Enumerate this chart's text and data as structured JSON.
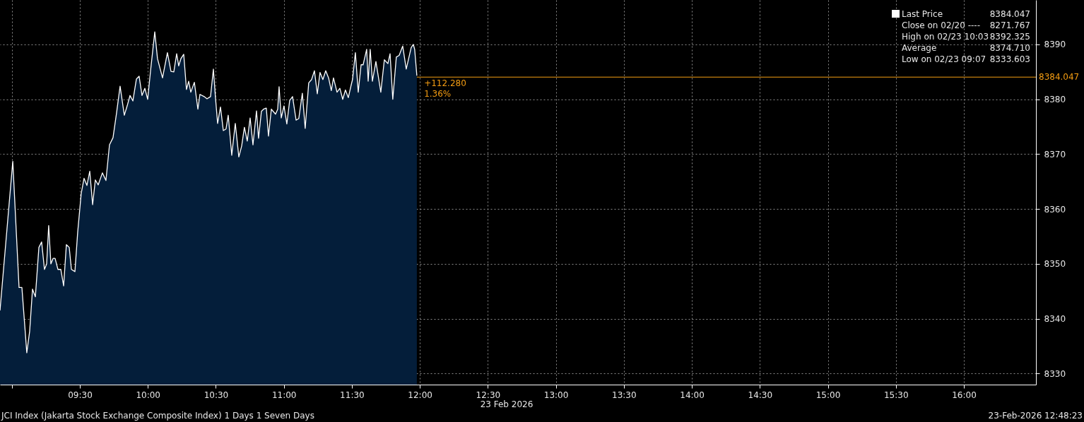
{
  "chart_data": {
    "type": "area",
    "x": [
      8.913,
      9.007,
      9.053,
      9.074,
      9.11,
      9.131,
      9.152,
      9.173,
      9.199,
      9.219,
      9.24,
      9.256,
      9.271,
      9.287,
      9.303,
      9.318,
      9.339,
      9.36,
      9.381,
      9.401,
      9.422,
      9.438,
      9.464,
      9.484,
      9.51,
      9.531,
      9.552,
      9.573,
      9.594,
      9.614,
      9.635,
      9.666,
      9.692,
      9.718,
      9.744,
      9.77,
      9.796,
      9.827,
      9.848,
      9.869,
      9.89,
      9.916,
      9.936,
      9.957,
      9.978,
      9.999,
      10.02,
      10.051,
      10.071,
      10.108,
      10.144,
      10.17,
      10.191,
      10.212,
      10.227,
      10.243,
      10.264,
      10.284,
      10.3,
      10.316,
      10.342,
      10.368,
      10.383,
      10.414,
      10.435,
      10.461,
      10.482,
      10.497,
      10.513,
      10.534,
      10.555,
      10.575,
      10.591,
      10.617,
      10.643,
      10.669,
      10.69,
      10.71,
      10.731,
      10.752,
      10.773,
      10.799,
      10.814,
      10.835,
      10.851,
      10.871,
      10.887,
      10.908,
      10.939,
      10.955,
      10.965,
      10.981,
      11.001,
      11.022,
      11.043,
      11.064,
      11.09,
      11.11,
      11.136,
      11.157,
      11.183,
      11.204,
      11.225,
      11.246,
      11.266,
      11.287,
      11.308,
      11.329,
      11.349,
      11.365,
      11.391,
      11.412,
      11.433,
      11.453,
      11.474,
      11.495,
      11.505,
      11.526,
      11.547,
      11.568,
      11.583,
      11.609,
      11.62,
      11.635,
      11.651,
      11.677,
      11.713,
      11.739,
      11.765,
      11.781,
      11.801,
      11.827,
      11.848,
      11.874,
      11.9,
      11.936,
      11.952,
      11.962,
      11.978
    ],
    "series": [
      {
        "name": "Last Price",
        "color": "#ffffff",
        "values": [
          8341.5,
          8368.7,
          8345.7,
          8345.7,
          8333.8,
          8337.7,
          8345.4,
          8344.0,
          8353.0,
          8354.0,
          8349.0,
          8350.0,
          8357.0,
          8350.0,
          8351.0,
          8351.0,
          8349.0,
          8349.0,
          8346.0,
          8353.5,
          8353.0,
          8349.0,
          8348.6,
          8355.7,
          8362.8,
          8365.6,
          8364.3,
          8366.9,
          8360.8,
          8365.3,
          8364.4,
          8366.6,
          8365.2,
          8371.7,
          8373.0,
          8377.5,
          8382.4,
          8377.1,
          8378.8,
          8380.7,
          8379.7,
          8383.7,
          8384.2,
          8380.7,
          8382.0,
          8380.0,
          8385.2,
          8392.3,
          8387.4,
          8383.9,
          8388.5,
          8385.1,
          8385.0,
          8388.3,
          8386.1,
          8387.4,
          8388.2,
          8381.8,
          8383.3,
          8381.3,
          8383.1,
          8378.2,
          8380.9,
          8380.5,
          8380.1,
          8380.5,
          8385.5,
          8380.4,
          8375.6,
          8378.6,
          8374.3,
          8374.6,
          8377.1,
          8369.8,
          8375.6,
          8369.5,
          8371.5,
          8374.9,
          8372.4,
          8376.6,
          8371.7,
          8377.9,
          8372.9,
          8377.8,
          8378.2,
          8378.4,
          8373.3,
          8378.2,
          8377.3,
          8378.2,
          8382.3,
          8376.6,
          8378.8,
          8375.5,
          8379.8,
          8380.5,
          8376.2,
          8376.5,
          8381.1,
          8374.7,
          8383.0,
          8383.6,
          8385.2,
          8381.0,
          8384.9,
          8383.6,
          8385.2,
          8383.9,
          8381.6,
          8383.9,
          8381.3,
          8382.0,
          8380.0,
          8381.7,
          8380.3,
          8382.6,
          8383.6,
          8388.5,
          8381.3,
          8386.3,
          8386.3,
          8389.1,
          8383.3,
          8389.1,
          8383.3,
          8386.9,
          8381.3,
          8387.2,
          8386.5,
          8388.3,
          8380.0,
          8387.7,
          8388.0,
          8389.7,
          8385.5,
          8389.4,
          8390.0,
          8389.1,
          8384.3
        ]
      }
    ],
    "xlim": [
      8.913,
      16.53
    ],
    "xticks": [
      {
        "value": 9.0,
        "label": null
      },
      {
        "value": 9.5,
        "label": "09:30"
      },
      {
        "value": 10.0,
        "label": "10:00"
      },
      {
        "value": 10.5,
        "label": "10:30"
      },
      {
        "value": 11.0,
        "label": "11:00"
      },
      {
        "value": 11.5,
        "label": "11:30"
      },
      {
        "value": 12.0,
        "label": "12:00"
      },
      {
        "value": 12.5,
        "label": "12:30"
      },
      {
        "value": 13.0,
        "label": "13:00"
      },
      {
        "value": 13.5,
        "label": "13:30"
      },
      {
        "value": 14.0,
        "label": "14:00"
      },
      {
        "value": 14.5,
        "label": "14:30"
      },
      {
        "value": 15.0,
        "label": "15:00"
      },
      {
        "value": 15.5,
        "label": "15:30"
      },
      {
        "value": 16.0,
        "label": "16:00"
      }
    ],
    "ylim": [
      8328.0,
      8398.1
    ],
    "yticks": [
      8330,
      8340,
      8350,
      8360,
      8370,
      8380,
      8390
    ],
    "grid": true,
    "legend": "top right",
    "ref_lines": [
      {
        "axis": "y",
        "value": 8384.047,
        "label": "8384.047",
        "color": "#f39c12"
      }
    ],
    "annotations": [
      {
        "text": "+112.280",
        "x": 12.0,
        "y": 8384.047
      },
      {
        "text": "1.36%",
        "x": 12.0,
        "y": 8384.047
      },
      "23 Feb 2026",
      "JCI Index (Jakarta Stock Exchange Composite Index) 1 Days 1 Seven Days",
      "23-Feb-2026 12:48:23",
      "8384.047",
      "Close on 02/20 ----",
      "8271.767",
      "High on 02/23 10:03",
      "8392.325",
      "Average",
      "8374.710",
      "Low on 02/23 09:07",
      "8333.603"
    ]
  }
}
